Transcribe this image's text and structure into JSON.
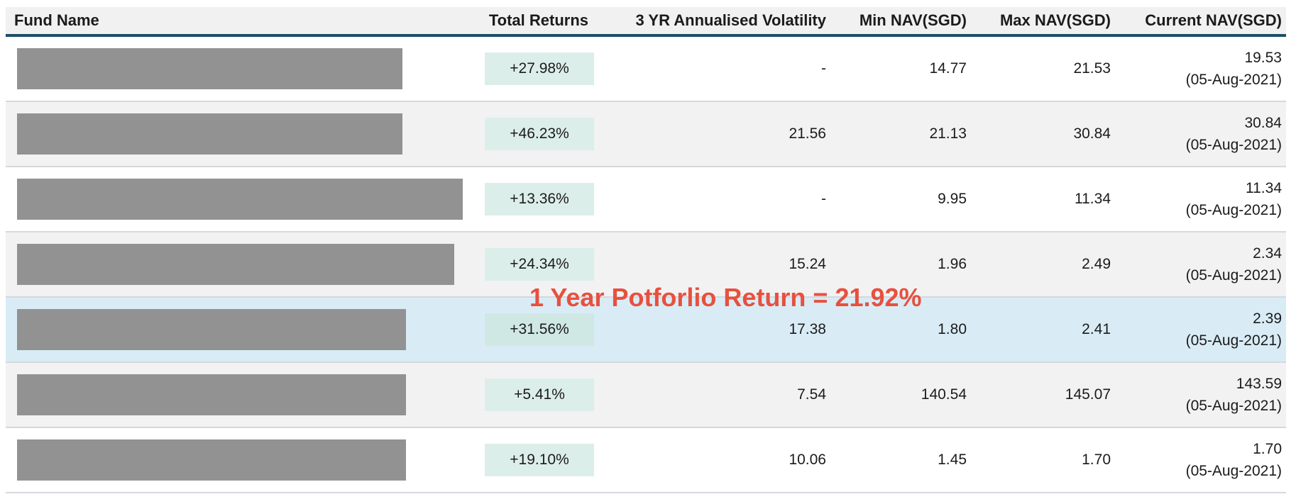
{
  "annotation": {
    "text": "1 Year Potforlio Return = 21.92%"
  },
  "table": {
    "header": {
      "fund": "Fund Name",
      "returns": "Total Returns",
      "volatility": "3 YR Annualised Volatility",
      "min_nav": "Min NAV(SGD)",
      "max_nav": "Max NAV(SGD)",
      "current_nav": "Current NAV(SGD)"
    },
    "rows": [
      {
        "fund_name_redacted": true,
        "redact_width": 543,
        "returns": "+27.98%",
        "volatility": "-",
        "min_nav": "14.77",
        "max_nav": "21.53",
        "current_nav": "19.53",
        "nav_date": "(05-Aug-2021)",
        "highlighted": false
      },
      {
        "fund_name_redacted": true,
        "redact_width": 543,
        "returns": "+46.23%",
        "volatility": "21.56",
        "min_nav": "21.13",
        "max_nav": "30.84",
        "current_nav": "30.84",
        "nav_date": "(05-Aug-2021)",
        "highlighted": false
      },
      {
        "fund_name_redacted": true,
        "redact_width": 628,
        "returns": "+13.36%",
        "volatility": "-",
        "min_nav": "9.95",
        "max_nav": "11.34",
        "current_nav": "11.34",
        "nav_date": "(05-Aug-2021)",
        "highlighted": false
      },
      {
        "fund_name_redacted": true,
        "redact_width": 616,
        "returns": "+24.34%",
        "volatility": "15.24",
        "min_nav": "1.96",
        "max_nav": "2.49",
        "current_nav": "2.34",
        "nav_date": "(05-Aug-2021)",
        "highlighted": false
      },
      {
        "fund_name_redacted": true,
        "redact_width": 548,
        "returns": "+31.56%",
        "volatility": "17.38",
        "min_nav": "1.80",
        "max_nav": "2.41",
        "current_nav": "2.39",
        "nav_date": "(05-Aug-2021)",
        "highlighted": true
      },
      {
        "fund_name_redacted": true,
        "redact_width": 548,
        "returns": "+5.41%",
        "volatility": "7.54",
        "min_nav": "140.54",
        "max_nav": "145.07",
        "current_nav": "143.59",
        "nav_date": "(05-Aug-2021)",
        "highlighted": false
      },
      {
        "fund_name_redacted": true,
        "redact_width": 548,
        "returns": "+19.10%",
        "volatility": "10.06",
        "min_nav": "1.45",
        "max_nav": "1.70",
        "current_nav": "1.70",
        "nav_date": "(05-Aug-2021)",
        "highlighted": false
      }
    ]
  },
  "colors": {
    "header_bg": "#f1f1f1",
    "header_border": "#1e4e63",
    "alt_row_bg": "#f2f2f2",
    "highlight_row_bg": "#d9ecf6",
    "chip_bg": "#dceeea",
    "chip_bg_highlight": "#cfe8e4",
    "redact_bar": "#929292",
    "divider": "#d5d8dc",
    "text": "#1b1b1b",
    "annotation_red": "#e8503e"
  }
}
